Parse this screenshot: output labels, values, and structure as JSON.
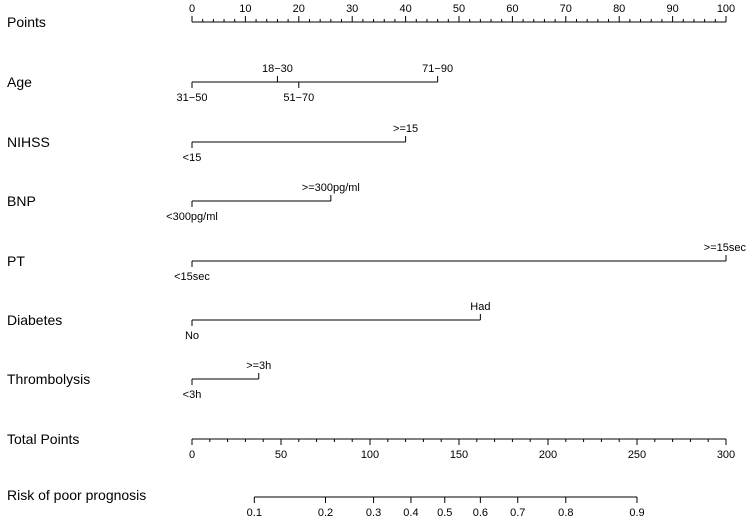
{
  "chart_data": {
    "type": "nomogram",
    "title": "",
    "points_axis": {
      "label": "Points",
      "range": [
        0,
        100
      ],
      "major_ticks": [
        0,
        10,
        20,
        30,
        40,
        50,
        60,
        70,
        80,
        90,
        100
      ],
      "minor_step": 2
    },
    "variables": [
      {
        "name": "Age",
        "levels": [
          {
            "label": "31−50",
            "points": 0,
            "side": "below"
          },
          {
            "label": "18−30",
            "points": 16,
            "side": "above"
          },
          {
            "label": "51−70",
            "points": 20,
            "side": "below"
          },
          {
            "label": "71−90",
            "points": 46,
            "side": "above"
          }
        ]
      },
      {
        "name": "NIHSS",
        "levels": [
          {
            "label": "<15",
            "points": 0,
            "side": "below"
          },
          {
            "label": ">=15",
            "points": 40,
            "side": "above"
          }
        ]
      },
      {
        "name": "BNP",
        "levels": [
          {
            "label": "<300pg/ml",
            "points": 0,
            "side": "below"
          },
          {
            "label": ">=300pg/ml",
            "points": 26,
            "side": "above"
          }
        ]
      },
      {
        "name": "PT",
        "levels": [
          {
            "label": "<15sec",
            "points": 0,
            "side": "below"
          },
          {
            "label": ">=15sec",
            "points": 100,
            "side": "above"
          }
        ]
      },
      {
        "name": "Diabetes",
        "levels": [
          {
            "label": "No",
            "points": 0,
            "side": "below"
          },
          {
            "label": "Had",
            "points": 54,
            "side": "above"
          }
        ]
      },
      {
        "name": "Thrombolysis",
        "levels": [
          {
            "label": "<3h",
            "points": 0,
            "side": "below"
          },
          {
            "label": ">=3h",
            "points": 12.5,
            "side": "above"
          }
        ]
      }
    ],
    "total_points_axis": {
      "label": "Total Points",
      "range": [
        0,
        300
      ],
      "major_ticks": [
        0,
        50,
        100,
        150,
        200,
        250,
        300
      ],
      "minor_step": 10
    },
    "risk_axis": {
      "label": "Risk of poor prognosis",
      "ticks": [
        {
          "label": "0.1",
          "total_points": 35
        },
        {
          "label": "0.2",
          "total_points": 75
        },
        {
          "label": "0.3",
          "total_points": 102
        },
        {
          "label": "0.4",
          "total_points": 123
        },
        {
          "label": "0.5",
          "total_points": 142
        },
        {
          "label": "0.6",
          "total_points": 162
        },
        {
          "label": "0.7",
          "total_points": 183
        },
        {
          "label": "0.8",
          "total_points": 210
        },
        {
          "label": "0.9",
          "total_points": 250
        }
      ]
    }
  }
}
